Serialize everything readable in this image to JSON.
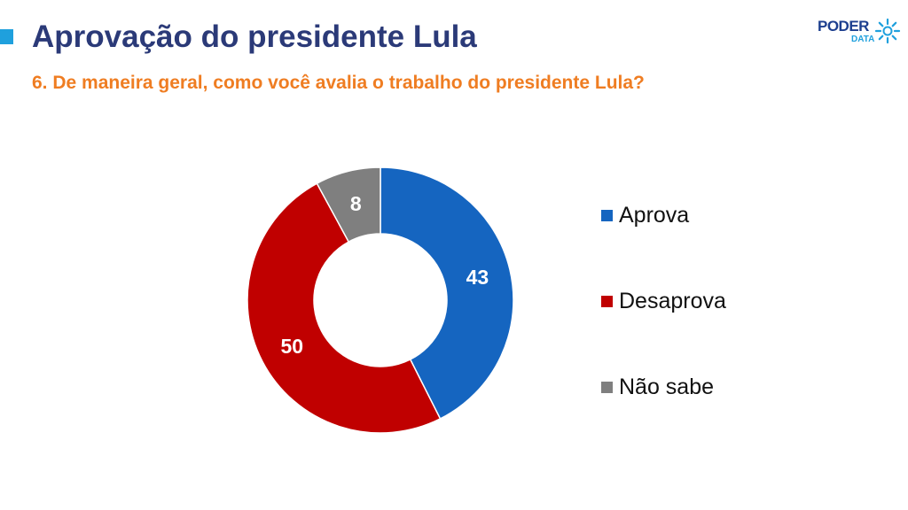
{
  "header": {
    "title": "Aprovação do presidente Lula",
    "subtitle": "6. De maneira geral, como você avalia o trabalho do presidente Lula?"
  },
  "logo": {
    "word": "PODER",
    "sub": "DATA",
    "icon": "sunburst-icon"
  },
  "colors": {
    "title": "#2b3a78",
    "subtitle": "#ef7d22",
    "accent": "#1fa0dd"
  },
  "chart_data": {
    "type": "pie",
    "style": "donut",
    "series": [
      {
        "name": "Aprova",
        "value": 43,
        "label": "43",
        "color": "#1565c0"
      },
      {
        "name": "Desaprova",
        "value": 50,
        "label": "50",
        "color": "#c00000"
      },
      {
        "name": "Não sabe",
        "value": 8,
        "label": "8",
        "color": "#7f7f7f"
      }
    ],
    "legend_position": "right"
  }
}
